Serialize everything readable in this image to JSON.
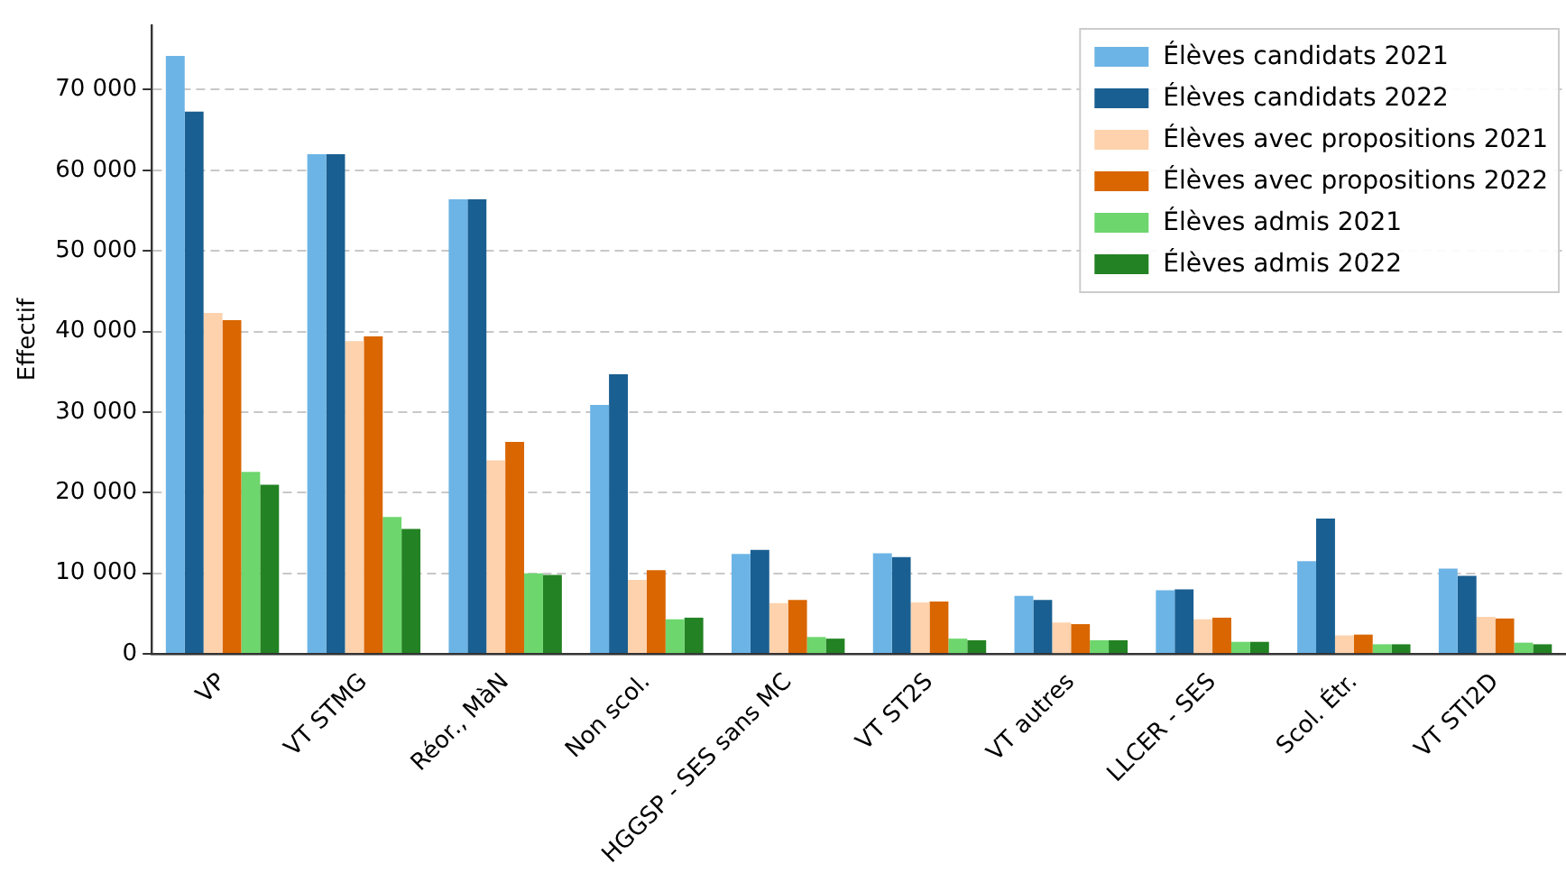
{
  "chart_data": {
    "type": "bar",
    "ylabel": "Effectif",
    "categories": [
      "VP",
      "VT STMG",
      "Réor., MàN",
      "Non scol.",
      "HGGSP - SES sans MC",
      "VT ST2S",
      "VT autres",
      "LLCER - SES",
      "Scol. Étr.",
      "VT STI2D"
    ],
    "series": [
      {
        "name": "Élèves candidats 2021",
        "color": "#6cb4e6",
        "values": [
          74200,
          62000,
          56400,
          30900,
          12400,
          12500,
          7200,
          7900,
          11500,
          10600
        ]
      },
      {
        "name": "Élèves candidats 2022",
        "color": "#1a5f91",
        "values": [
          67300,
          62000,
          56400,
          34700,
          12900,
          12000,
          6700,
          8000,
          16800,
          9700
        ]
      },
      {
        "name": "Élèves avec propositions 2021",
        "color": "#fdd2ad",
        "values": [
          42300,
          38800,
          24000,
          9200,
          6300,
          6400,
          3900,
          4300,
          2300,
          4600
        ]
      },
      {
        "name": "Élèves avec propositions 2022",
        "color": "#d96600",
        "values": [
          41400,
          39400,
          26300,
          10400,
          6700,
          6500,
          3700,
          4500,
          2400,
          4400
        ]
      },
      {
        "name": "Élèves admis 2021",
        "color": "#6dd66d",
        "values": [
          22600,
          17000,
          10000,
          4300,
          2100,
          1900,
          1700,
          1500,
          1200,
          1400
        ]
      },
      {
        "name": "Élèves admis 2022",
        "color": "#238223",
        "values": [
          21000,
          15500,
          9800,
          4500,
          1900,
          1700,
          1700,
          1500,
          1200,
          1200
        ]
      }
    ],
    "ylim": [
      0,
      78000
    ],
    "yticks": [
      {
        "value": 0,
        "label": "0"
      },
      {
        "value": 10000,
        "label": "10 000"
      },
      {
        "value": 20000,
        "label": "20 000"
      },
      {
        "value": 30000,
        "label": "30 000"
      },
      {
        "value": 40000,
        "label": "40 000"
      },
      {
        "value": 50000,
        "label": "50 000"
      },
      {
        "value": 60000,
        "label": "60 000"
      },
      {
        "value": 70000,
        "label": "70 000"
      }
    ],
    "grid": "y",
    "legend": "top right"
  }
}
